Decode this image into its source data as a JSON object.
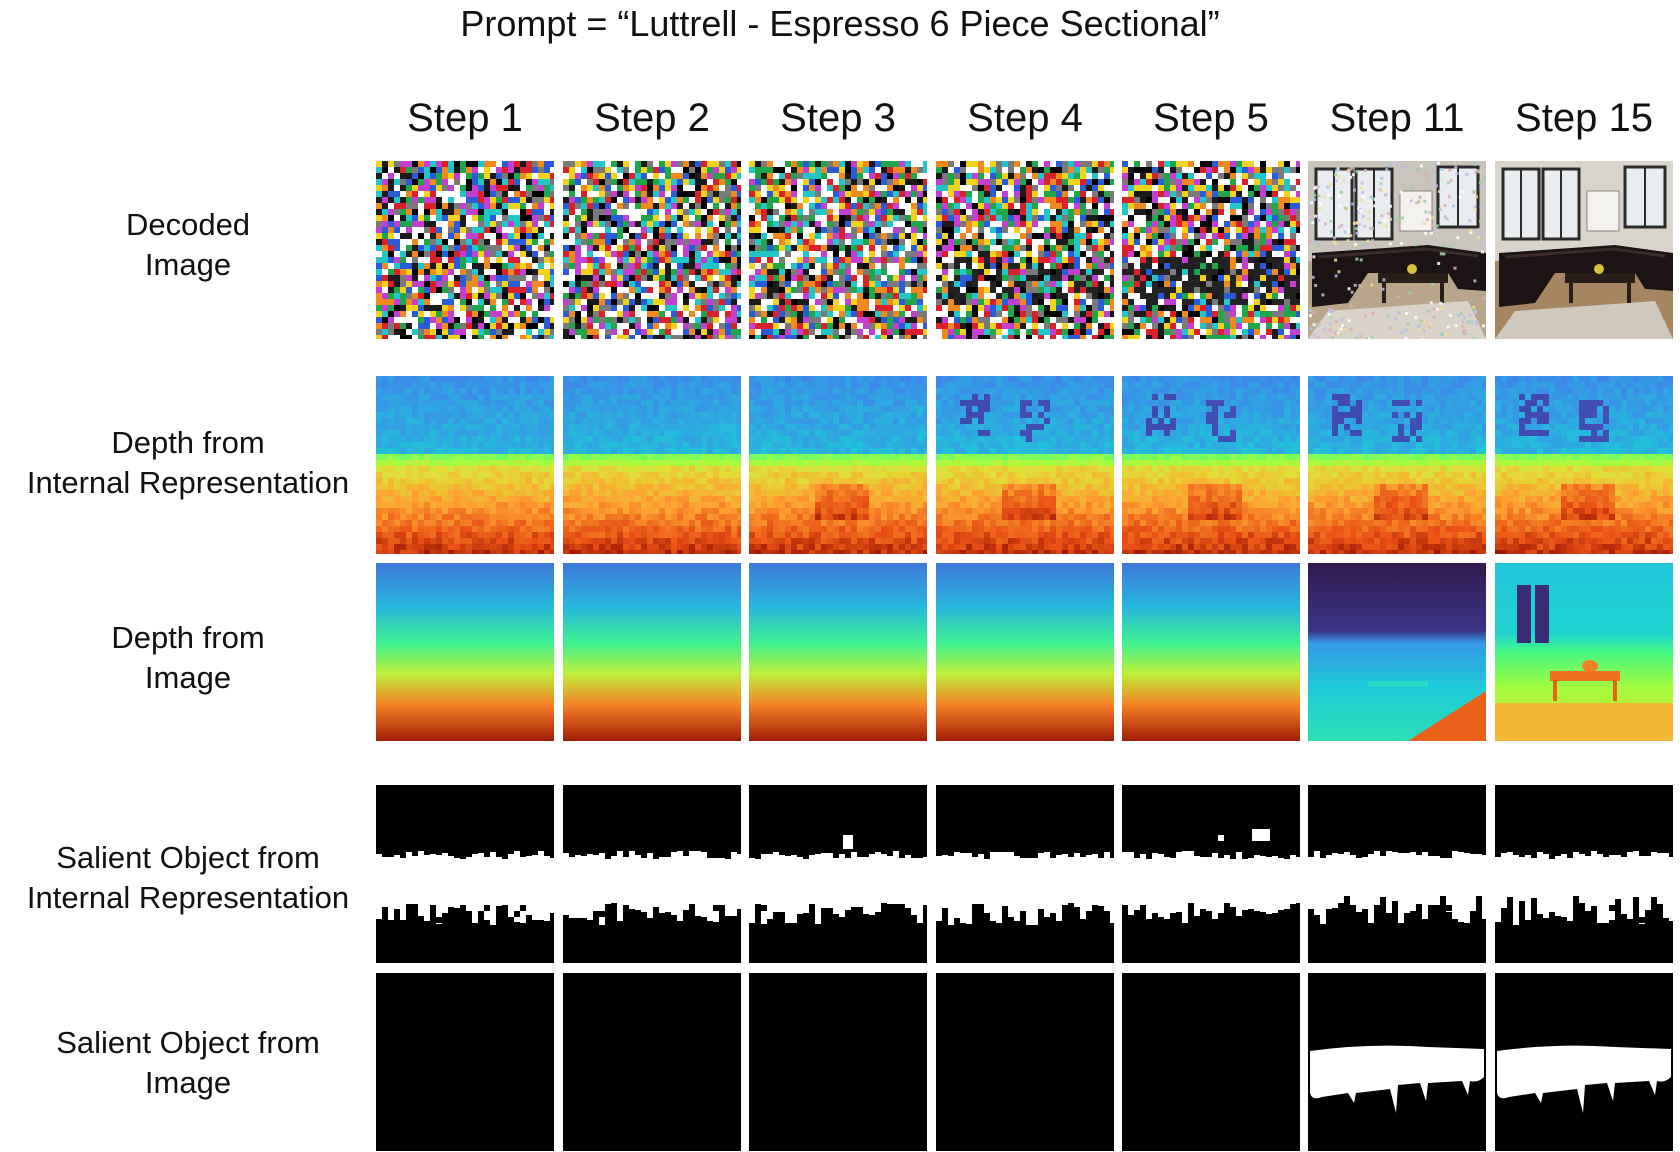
{
  "figure": {
    "title": "Prompt = “Luttrell - Espresso 6 Piece Sectional”",
    "steps": [
      "Step 1",
      "Step 2",
      "Step 3",
      "Step 4",
      "Step 5",
      "Step 11",
      "Step 15"
    ],
    "rows": [
      {
        "id": "decoded",
        "label_lines": [
          "Decoded",
          "Image"
        ]
      },
      {
        "id": "depth-internal",
        "label_lines": [
          "Depth from",
          "Internal Representation"
        ]
      },
      {
        "id": "depth-image",
        "label_lines": [
          "Depth from",
          "Image"
        ]
      },
      {
        "id": "salient-internal",
        "label_lines": [
          "Salient Object from",
          "Internal Representation"
        ]
      },
      {
        "id": "salient-image",
        "label_lines": [
          "Salient Object from",
          "Image"
        ]
      }
    ]
  }
}
